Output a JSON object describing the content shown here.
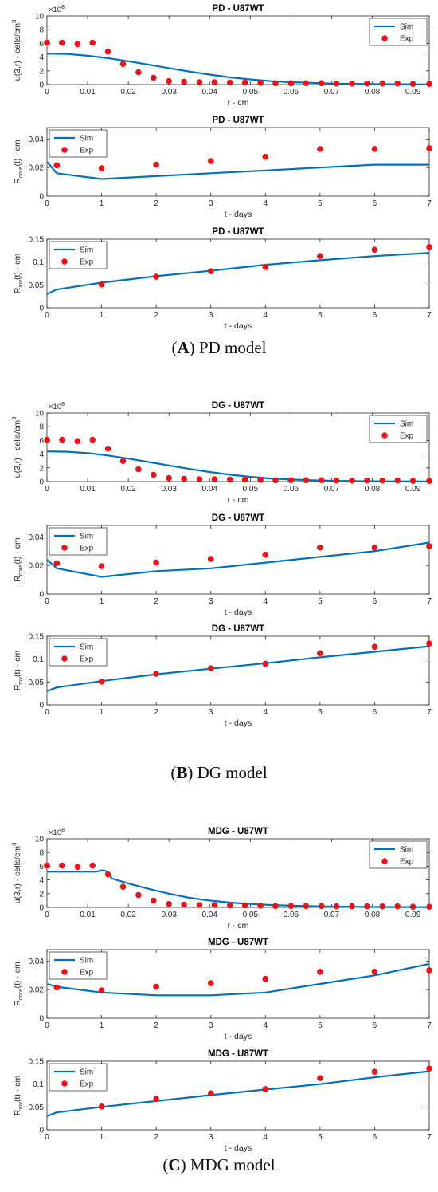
{
  "panels": [
    {
      "label": "A",
      "caption": "PD model"
    },
    {
      "label": "B",
      "caption": "DG model"
    },
    {
      "label": "C",
      "caption": "MDG model"
    }
  ],
  "colors": {
    "sim": "#0072BD",
    "exp": "#E8141A",
    "axis": "#262626"
  },
  "chart_data": [
    {
      "type": "line",
      "title": "PD - U87WT",
      "xlabel": "r - cm",
      "ylabel": "u(3,r) - cells/cm",
      "ylabel_sup": "3",
      "xlim": [
        0,
        0.094
      ],
      "ylim": [
        0,
        10
      ],
      "xticks": [
        0,
        0.01,
        0.02,
        0.03,
        0.04,
        0.05,
        0.06,
        0.07,
        0.08,
        0.09
      ],
      "xtick_labels": [
        "0",
        "0.01",
        "0.02",
        "0.03",
        "0.04",
        "0.05",
        "0.06",
        "0.07",
        "0.08",
        "0.09"
      ],
      "yticks": [
        0,
        2,
        4,
        6,
        8,
        10
      ],
      "ytick_labels": [
        "0",
        "2",
        "4",
        "6",
        "8",
        "10"
      ],
      "yexponent": "8",
      "legend_position": "top-right",
      "series": [
        {
          "name": "Sim",
          "kind": "line",
          "x": [
            0,
            0.005,
            0.01,
            0.015,
            0.02,
            0.025,
            0.03,
            0.035,
            0.04,
            0.045,
            0.05,
            0.055,
            0.06,
            0.065,
            0.07,
            0.075,
            0.08,
            0.085,
            0.09,
            0.094
          ],
          "y": [
            4.5,
            4.45,
            4.2,
            3.85,
            3.4,
            2.9,
            2.4,
            1.9,
            1.45,
            1.05,
            0.75,
            0.5,
            0.35,
            0.25,
            0.15,
            0.1,
            0.07,
            0.05,
            0.03,
            0.02
          ]
        },
        {
          "name": "Exp",
          "kind": "scatter",
          "x": [
            0,
            0.0037,
            0.0075,
            0.0112,
            0.015,
            0.0187,
            0.0225,
            0.0262,
            0.03,
            0.0337,
            0.0375,
            0.0412,
            0.045,
            0.0487,
            0.0525,
            0.0562,
            0.06,
            0.0637,
            0.0675,
            0.0712,
            0.075,
            0.0787,
            0.0825,
            0.0862,
            0.09,
            0.094
          ],
          "y": [
            6.1,
            6.1,
            5.9,
            6.1,
            4.8,
            3.0,
            1.8,
            1.0,
            0.5,
            0.4,
            0.35,
            0.35,
            0.3,
            0.3,
            0.25,
            0.2,
            0.2,
            0.2,
            0.2,
            0.15,
            0.15,
            0.15,
            0.15,
            0.15,
            0.1,
            0.1
          ]
        }
      ]
    },
    {
      "type": "line",
      "title": "PD - U87WT",
      "xlabel": "t - days",
      "ylabel": "R",
      "ylabel_sub": "core",
      "ylabel_rest": "(t) - cm",
      "xlim": [
        0,
        7
      ],
      "ylim": [
        0,
        0.048
      ],
      "xticks": [
        0,
        1,
        2,
        3,
        4,
        5,
        6,
        7
      ],
      "xtick_labels": [
        "0",
        "1",
        "2",
        "3",
        "4",
        "5",
        "6",
        "7"
      ],
      "yticks": [
        0,
        0.02,
        0.04
      ],
      "ytick_labels": [
        "0",
        "0.02",
        "0.04"
      ],
      "legend_position": "top-left",
      "series": [
        {
          "name": "Sim",
          "kind": "line",
          "x": [
            0,
            0.18,
            1,
            2,
            3,
            4,
            5,
            6,
            7
          ],
          "y": [
            0.024,
            0.016,
            0.012,
            0.014,
            0.016,
            0.018,
            0.02,
            0.022,
            0.022
          ]
        },
        {
          "name": "Exp",
          "kind": "scatter",
          "x": [
            0.18,
            1,
            2,
            3,
            4,
            5,
            6,
            7
          ],
          "y": [
            0.0215,
            0.0195,
            0.022,
            0.0245,
            0.0275,
            0.033,
            0.033,
            0.0335
          ]
        }
      ]
    },
    {
      "type": "line",
      "title": "PD - U87WT",
      "xlabel": "t - days",
      "ylabel": "R",
      "ylabel_sub": "inv",
      "ylabel_rest": "(t) - cm",
      "xlim": [
        0,
        7
      ],
      "ylim": [
        0,
        0.15
      ],
      "xticks": [
        0,
        1,
        2,
        3,
        4,
        5,
        6,
        7
      ],
      "xtick_labels": [
        "0",
        "1",
        "2",
        "3",
        "4",
        "5",
        "6",
        "7"
      ],
      "yticks": [
        0,
        0.05,
        0.1,
        0.15
      ],
      "ytick_labels": [
        "0",
        "0.05",
        "0.1",
        "0.15"
      ],
      "legend_position": "top-left",
      "series": [
        {
          "name": "Sim",
          "kind": "line",
          "x": [
            0,
            0.18,
            1,
            2,
            3,
            4,
            5,
            6,
            7
          ],
          "y": [
            0.03,
            0.04,
            0.055,
            0.069,
            0.081,
            0.094,
            0.104,
            0.113,
            0.12
          ]
        },
        {
          "name": "Exp",
          "kind": "scatter",
          "x": [
            1,
            2,
            3,
            4,
            5,
            6,
            7
          ],
          "y": [
            0.051,
            0.068,
            0.08,
            0.089,
            0.113,
            0.127,
            0.133
          ]
        }
      ]
    },
    {
      "type": "line",
      "title": "DG - U87WT",
      "xlabel": "r - cm",
      "ylabel": "u(3,r) - cells/cm",
      "ylabel_sup": "3",
      "xlim": [
        0,
        0.094
      ],
      "ylim": [
        0,
        10
      ],
      "xticks": [
        0,
        0.01,
        0.02,
        0.03,
        0.04,
        0.05,
        0.06,
        0.07,
        0.08,
        0.09
      ],
      "xtick_labels": [
        "0",
        "0.01",
        "0.02",
        "0.03",
        "0.04",
        "0.05",
        "0.06",
        "0.07",
        "0.08",
        "0.09"
      ],
      "yticks": [
        0,
        2,
        4,
        6,
        8,
        10
      ],
      "ytick_labels": [
        "0",
        "2",
        "4",
        "6",
        "8",
        "10"
      ],
      "yexponent": "8",
      "legend_position": "top-right",
      "series": [
        {
          "name": "Sim",
          "kind": "line",
          "x": [
            0,
            0.005,
            0.01,
            0.015,
            0.02,
            0.025,
            0.03,
            0.035,
            0.04,
            0.045,
            0.05,
            0.055,
            0.06,
            0.065,
            0.07,
            0.075,
            0.08,
            0.085,
            0.09,
            0.094
          ],
          "y": [
            4.4,
            4.35,
            4.15,
            3.8,
            3.35,
            2.85,
            2.35,
            1.85,
            1.4,
            1.0,
            0.7,
            0.45,
            0.3,
            0.2,
            0.12,
            0.08,
            0.05,
            0.04,
            0.03,
            0.02
          ]
        },
        {
          "name": "Exp",
          "kind": "scatter",
          "x": [
            0,
            0.0037,
            0.0075,
            0.0112,
            0.015,
            0.0187,
            0.0225,
            0.0262,
            0.03,
            0.0337,
            0.0375,
            0.0412,
            0.045,
            0.0487,
            0.0525,
            0.0562,
            0.06,
            0.0637,
            0.0675,
            0.0712,
            0.075,
            0.0787,
            0.0825,
            0.0862,
            0.09,
            0.094
          ],
          "y": [
            6.1,
            6.1,
            5.9,
            6.1,
            4.8,
            3.0,
            1.8,
            1.0,
            0.5,
            0.4,
            0.35,
            0.35,
            0.3,
            0.3,
            0.25,
            0.2,
            0.2,
            0.2,
            0.2,
            0.15,
            0.15,
            0.15,
            0.15,
            0.15,
            0.1,
            0.1
          ]
        }
      ]
    },
    {
      "type": "line",
      "title": "DG - U87WT",
      "xlabel": "t - days",
      "ylabel": "R",
      "ylabel_sub": "core",
      "ylabel_rest": "(t) - cm",
      "xlim": [
        0,
        7
      ],
      "ylim": [
        0,
        0.048
      ],
      "xticks": [
        0,
        1,
        2,
        3,
        4,
        5,
        6,
        7
      ],
      "xtick_labels": [
        "0",
        "1",
        "2",
        "3",
        "4",
        "5",
        "6",
        "7"
      ],
      "yticks": [
        0,
        0.02,
        0.04
      ],
      "ytick_labels": [
        "0",
        "0.02",
        "0.04"
      ],
      "legend_position": "top-left",
      "series": [
        {
          "name": "Sim",
          "kind": "line",
          "x": [
            0,
            0.18,
            1,
            2,
            3,
            4,
            5,
            6,
            7
          ],
          "y": [
            0.024,
            0.018,
            0.012,
            0.016,
            0.018,
            0.022,
            0.026,
            0.03,
            0.036
          ]
        },
        {
          "name": "Exp",
          "kind": "scatter",
          "x": [
            0.18,
            1,
            2,
            3,
            4,
            5,
            6,
            7
          ],
          "y": [
            0.0215,
            0.0195,
            0.022,
            0.0245,
            0.0275,
            0.0325,
            0.0325,
            0.0335
          ]
        }
      ]
    },
    {
      "type": "line",
      "title": "DG - U87WT",
      "xlabel": "t - days",
      "ylabel": "R",
      "ylabel_sub": "inv",
      "ylabel_rest": "(t) - cm",
      "xlim": [
        0,
        7
      ],
      "ylim": [
        0,
        0.15
      ],
      "xticks": [
        0,
        1,
        2,
        3,
        4,
        5,
        6,
        7
      ],
      "xtick_labels": [
        "0",
        "1",
        "2",
        "3",
        "4",
        "5",
        "6",
        "7"
      ],
      "yticks": [
        0,
        0.05,
        0.1,
        0.15
      ],
      "ytick_labels": [
        "0",
        "0.05",
        "0.1",
        "0.15"
      ],
      "legend_position": "top-left",
      "series": [
        {
          "name": "Sim",
          "kind": "line",
          "x": [
            0,
            0.18,
            1,
            2,
            3,
            4,
            5,
            6,
            7
          ],
          "y": [
            0.03,
            0.038,
            0.052,
            0.067,
            0.079,
            0.091,
            0.104,
            0.116,
            0.128
          ]
        },
        {
          "name": "Exp",
          "kind": "scatter",
          "x": [
            1,
            2,
            3,
            4,
            5,
            6,
            7
          ],
          "y": [
            0.051,
            0.068,
            0.08,
            0.09,
            0.113,
            0.127,
            0.134
          ]
        }
      ]
    },
    {
      "type": "line",
      "title": "MDG - U87WT",
      "xlabel": "r - cm",
      "ylabel": "u(3,r) - cells/cm",
      "ylabel_sup": "3",
      "xlim": [
        0,
        0.094
      ],
      "ylim": [
        0,
        10
      ],
      "xticks": [
        0,
        0.01,
        0.02,
        0.03,
        0.04,
        0.05,
        0.06,
        0.07,
        0.08,
        0.09
      ],
      "xtick_labels": [
        "0",
        "0.01",
        "0.02",
        "0.03",
        "0.04",
        "0.05",
        "0.06",
        "0.07",
        "0.08",
        "0.09"
      ],
      "yticks": [
        0,
        2,
        4,
        6,
        8,
        10
      ],
      "ytick_labels": [
        "0",
        "2",
        "4",
        "6",
        "8",
        "10"
      ],
      "yexponent": "8",
      "legend_position": "top-right",
      "series": [
        {
          "name": "Sim",
          "kind": "line",
          "x": [
            0,
            0.005,
            0.01,
            0.012,
            0.0135,
            0.0145,
            0.016,
            0.02,
            0.025,
            0.03,
            0.035,
            0.04,
            0.045,
            0.05,
            0.055,
            0.06,
            0.065,
            0.07,
            0.08,
            0.094
          ],
          "y": [
            5.2,
            5.2,
            5.2,
            5.2,
            5.4,
            5.3,
            4.2,
            3.5,
            2.7,
            2.0,
            1.4,
            1.0,
            0.7,
            0.5,
            0.35,
            0.25,
            0.18,
            0.12,
            0.06,
            0.03
          ]
        },
        {
          "name": "Exp",
          "kind": "scatter",
          "x": [
            0,
            0.0037,
            0.0075,
            0.0112,
            0.015,
            0.0187,
            0.0225,
            0.0262,
            0.03,
            0.0337,
            0.0375,
            0.0412,
            0.045,
            0.0487,
            0.0525,
            0.0562,
            0.06,
            0.0637,
            0.0675,
            0.0712,
            0.075,
            0.0787,
            0.0825,
            0.0862,
            0.09,
            0.094
          ],
          "y": [
            6.1,
            6.1,
            5.9,
            6.1,
            4.8,
            3.0,
            1.8,
            1.0,
            0.5,
            0.4,
            0.35,
            0.35,
            0.3,
            0.3,
            0.25,
            0.2,
            0.2,
            0.2,
            0.2,
            0.15,
            0.15,
            0.15,
            0.15,
            0.15,
            0.1,
            0.1
          ]
        }
      ]
    },
    {
      "type": "line",
      "title": "MDG - U87WT",
      "xlabel": "t - days",
      "ylabel": "R",
      "ylabel_sub": "core",
      "ylabel_rest": "(t) - cm",
      "xlim": [
        0,
        7
      ],
      "ylim": [
        0,
        0.048
      ],
      "xticks": [
        0,
        1,
        2,
        3,
        4,
        5,
        6,
        7
      ],
      "xtick_labels": [
        "0",
        "1",
        "2",
        "3",
        "4",
        "5",
        "6",
        "7"
      ],
      "yticks": [
        0,
        0.02,
        0.04
      ],
      "ytick_labels": [
        "0",
        "0.02",
        "0.04"
      ],
      "legend_position": "top-left",
      "series": [
        {
          "name": "Sim",
          "kind": "line",
          "x": [
            0,
            0.18,
            1,
            2,
            3,
            4,
            5,
            6,
            7
          ],
          "y": [
            0.024,
            0.022,
            0.018,
            0.016,
            0.016,
            0.018,
            0.024,
            0.03,
            0.038
          ]
        },
        {
          "name": "Exp",
          "kind": "scatter",
          "x": [
            0.18,
            1,
            2,
            3,
            4,
            5,
            6,
            7
          ],
          "y": [
            0.0215,
            0.0195,
            0.022,
            0.0245,
            0.0275,
            0.0325,
            0.0325,
            0.0335
          ]
        }
      ]
    },
    {
      "type": "line",
      "title": "MDG - U87WT",
      "xlabel": "t - days",
      "ylabel": "R",
      "ylabel_sub": "inv",
      "ylabel_rest": "(t) - cm",
      "xlim": [
        0,
        7
      ],
      "ylim": [
        0,
        0.15
      ],
      "xticks": [
        0,
        1,
        2,
        3,
        4,
        5,
        6,
        7
      ],
      "xtick_labels": [
        "0",
        "1",
        "2",
        "3",
        "4",
        "5",
        "6",
        "7"
      ],
      "yticks": [
        0,
        0.05,
        0.1,
        0.15
      ],
      "ytick_labels": [
        "0",
        "0.05",
        "0.1",
        "0.15"
      ],
      "legend_position": "top-left",
      "series": [
        {
          "name": "Sim",
          "kind": "line",
          "x": [
            0,
            0.18,
            1,
            2,
            3,
            4,
            5,
            6,
            7
          ],
          "y": [
            0.03,
            0.038,
            0.05,
            0.063,
            0.076,
            0.088,
            0.1,
            0.115,
            0.128
          ]
        },
        {
          "name": "Exp",
          "kind": "scatter",
          "x": [
            1,
            2,
            3,
            4,
            5,
            6,
            7
          ],
          "y": [
            0.051,
            0.068,
            0.08,
            0.089,
            0.113,
            0.127,
            0.134
          ]
        }
      ]
    }
  ]
}
